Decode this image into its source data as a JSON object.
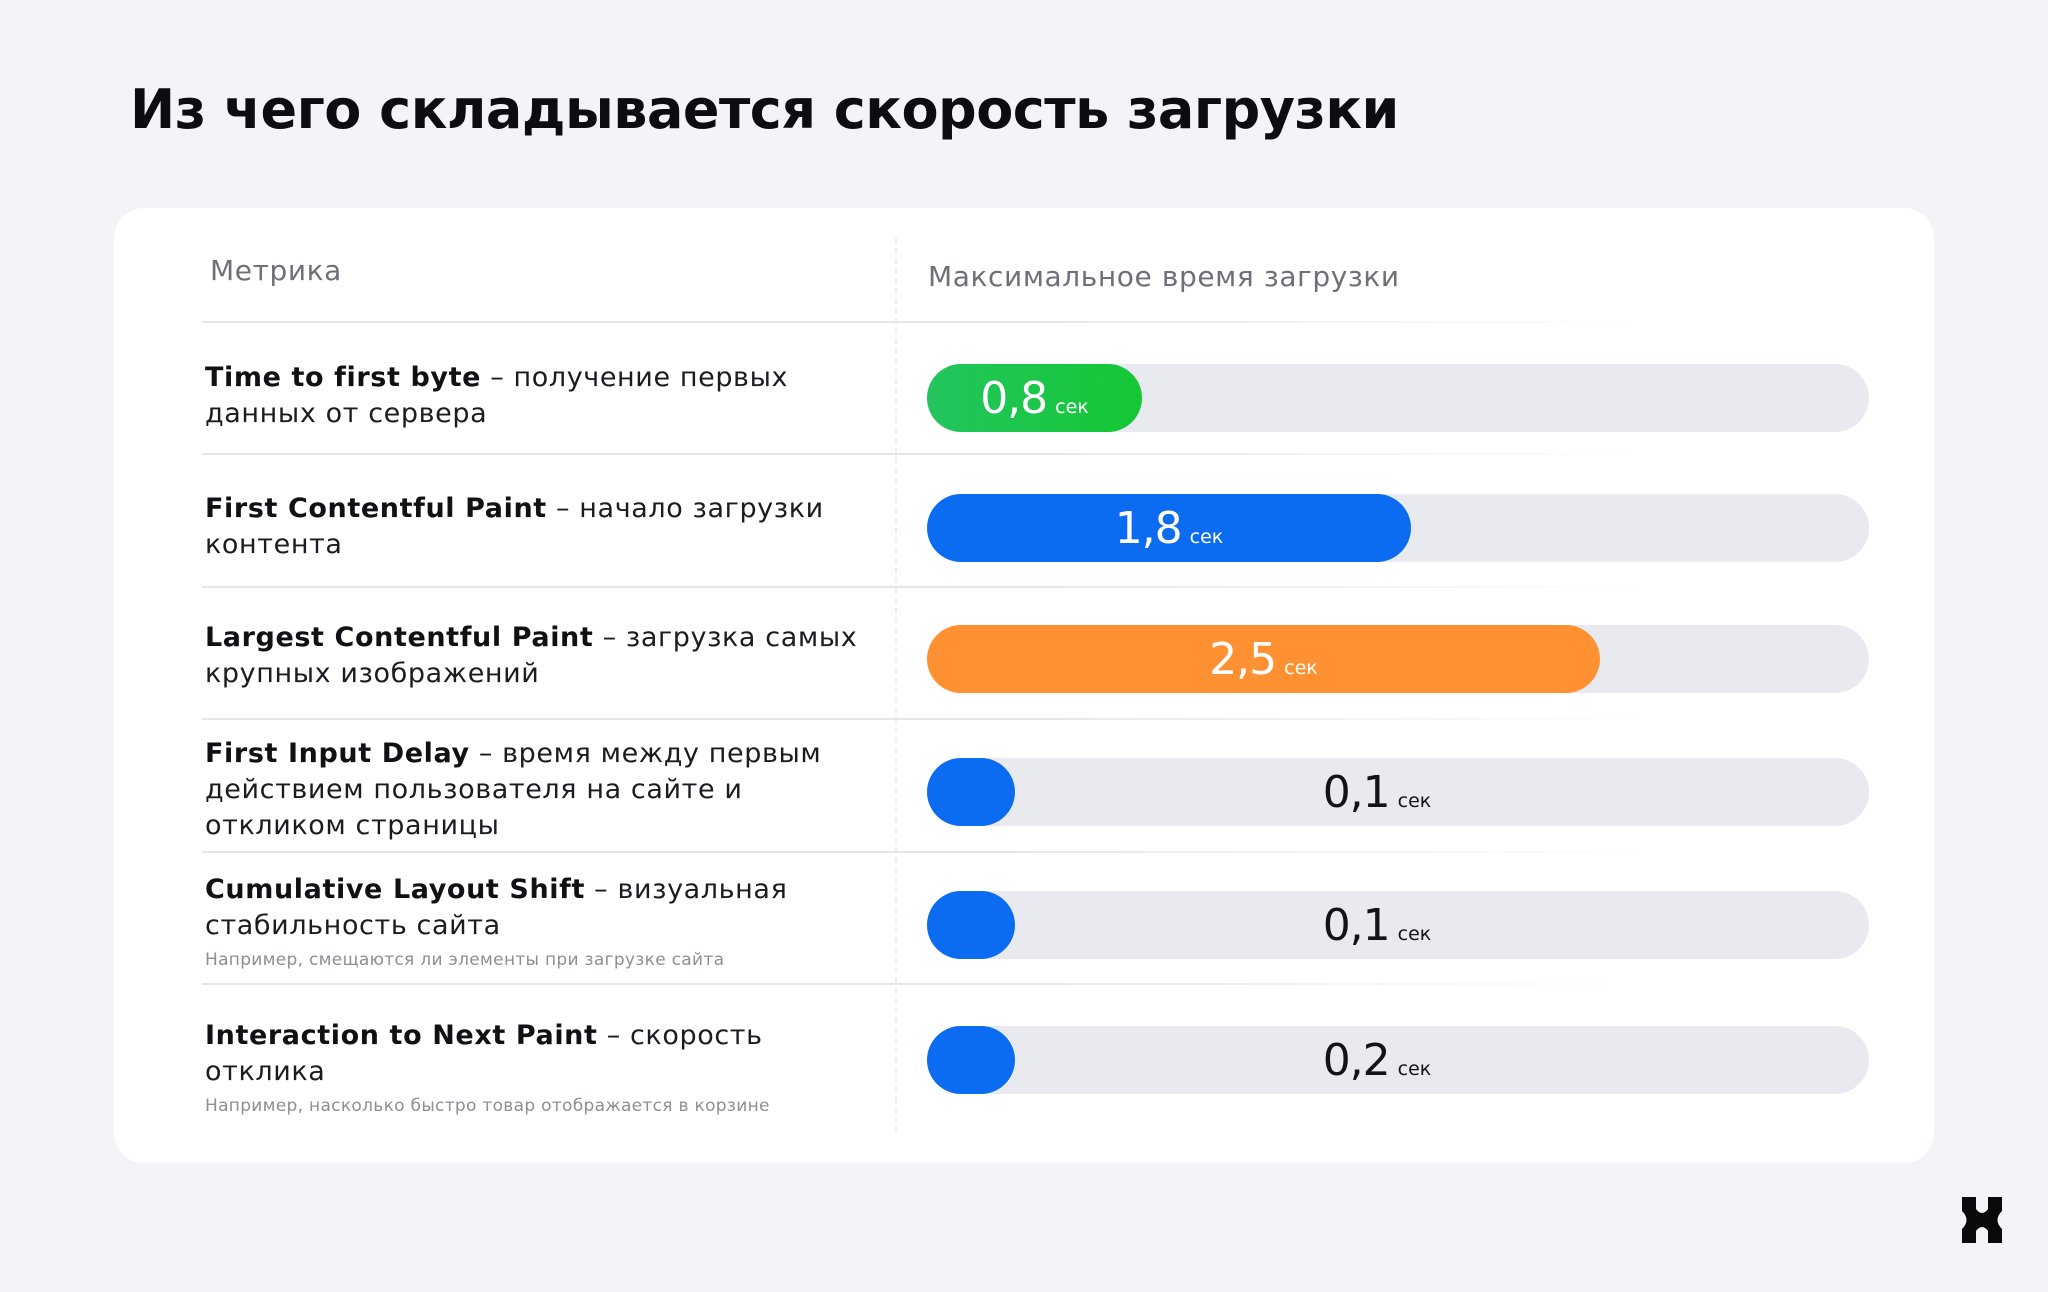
{
  "title": "Из чего складывается скорость загрузки",
  "headers": {
    "metric": "Метрика",
    "time": "Максимальное время загрузки"
  },
  "colors": {
    "green_start": "#22c55e",
    "green_end": "#14c733",
    "blue": "#0b6cf2",
    "orange": "#ff9132",
    "track": "#e9eaef"
  },
  "chart_data": {
    "type": "bar",
    "orientation": "horizontal",
    "xlim": [
      0,
      3.5
    ],
    "unit": "сек",
    "items": [
      {
        "name": "Time to first byte",
        "description": "получение первых данных от сервера",
        "note": "",
        "value": 0.8,
        "label": "0,8",
        "color": "green"
      },
      {
        "name": "First Contentful Paint",
        "description": "начало загрузки контента",
        "note": "",
        "value": 1.8,
        "label": "1,8",
        "color": "blue"
      },
      {
        "name": "Largest Contentful Paint",
        "description": "загрузка самых крупных изображений",
        "note": "",
        "value": 2.5,
        "label": "2,5",
        "color": "orange"
      },
      {
        "name": "First Input Delay",
        "description": "время между первым действием пользователя на сайте и откликом страницы",
        "note": "",
        "value": 0.1,
        "label": "0,1",
        "color": "blue"
      },
      {
        "name": "Cumulative Layout Shift",
        "description": "визуальная стабильность сайта",
        "note": "Например, смещаются ли элементы при загрузке сайта",
        "value": 0.1,
        "label": "0,1",
        "color": "blue"
      },
      {
        "name": "Interaction to Next Paint",
        "description": "скорость отклика",
        "note": "Например, насколько быстро товар отображается в корзине",
        "value": 0.2,
        "label": "0,2",
        "color": "blue"
      }
    ]
  },
  "logo": {
    "icon": "brand-x-logo-icon"
  }
}
